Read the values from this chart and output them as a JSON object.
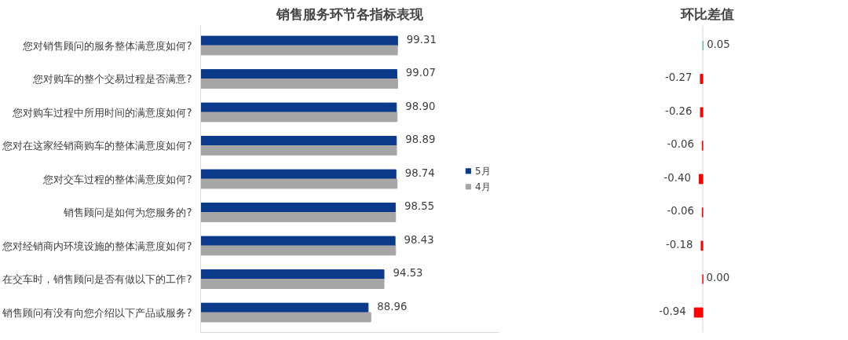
{
  "chart_data": [
    {
      "type": "bar",
      "orientation": "horizontal",
      "title": "销售服务环节各指标表现",
      "categories": [
        "您对销售顾问的服务整体满意度如何?",
        "您对购车的整个交易过程是否满意?",
        "您对购车过程中所用时间的满意度如何?",
        "您对在这家经销商购车的整体满意度如何?",
        "您对交车过程的整体满意度如何?",
        "销售顾问是如何为您服务的?",
        "您对经销商内环境设施的整体满意度如何?",
        "在交车时，销售顾问是否有做以下的工作?",
        "销售顾问有没有向您介绍以下产品或服务?"
      ],
      "series": [
        {
          "name": "5月",
          "color": "#0b3a8b",
          "values": [
            99.31,
            99.07,
            98.9,
            98.89,
            98.74,
            98.55,
            98.43,
            94.53,
            88.96
          ],
          "value_labels": [
            "99.31",
            "99.07",
            "98.90",
            "98.89",
            "98.74",
            "98.55",
            "98.43",
            "94.53",
            "88.96"
          ]
        },
        {
          "name": "4月",
          "color": "#a6a6a6",
          "values": [
            99.26,
            99.34,
            99.16,
            98.95,
            99.14,
            98.61,
            98.61,
            94.53,
            89.9
          ]
        }
      ],
      "xlim": [
        30,
        135
      ],
      "tick_labels": "y",
      "legend": "right",
      "grid": false
    },
    {
      "type": "bar",
      "orientation": "horizontal",
      "title": "环比差值",
      "categories": [
        null,
        null,
        null,
        null,
        null,
        null,
        null,
        null,
        null
      ],
      "values": [
        0.05,
        -0.27,
        -0.26,
        -0.06,
        -0.4,
        -0.06,
        -0.18,
        0.0,
        -0.94
      ],
      "colors": [
        "#70c08f",
        "#ff0000",
        "#ff0000",
        "#ff0000",
        "#ff0000",
        "#ff0000",
        "#ff0000",
        "#ff0000",
        "#ff0000"
      ],
      "value_labels": [
        "0.05",
        "-0.27",
        "-0.26",
        "-0.06",
        "-0.40",
        "-0.06",
        "-0.18",
        "0.00",
        "-0.94"
      ],
      "tick_labels": false,
      "grid": false
    }
  ]
}
